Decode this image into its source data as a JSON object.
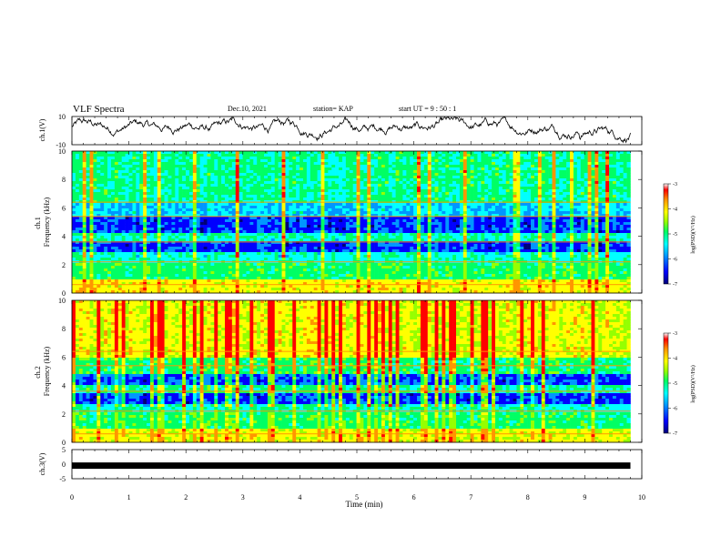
{
  "header": {
    "title": "VLF Spectra",
    "date": "Dec.10, 2021",
    "station": "station= KAP",
    "start": "start  UT =   9 : 50 : 1"
  },
  "chart_data": [
    {
      "type": "line",
      "name": "ch1-waveform",
      "ylabel": "ch.1(V)",
      "ylim": [
        -10,
        10
      ],
      "yticks": [
        "10",
        "-10"
      ],
      "xlim": [
        0,
        10
      ],
      "data_end_min": 9.8,
      "color": "#000000"
    },
    {
      "type": "heatmap",
      "name": "ch1-spectrogram",
      "ylabel": "ch.1\nFrequency (kHz)",
      "ylim": [
        0,
        10
      ],
      "yticks": [
        "0",
        "2",
        "4",
        "6",
        "8",
        "10"
      ],
      "xlim": [
        0,
        10
      ],
      "data_end_min": 9.8,
      "colorbar": {
        "label": "log(PSD)(V²/Hz)",
        "range": [
          -7,
          -3
        ],
        "ticks": [
          "-3",
          "-4",
          "-5",
          "-6",
          "-7"
        ]
      }
    },
    {
      "type": "heatmap",
      "name": "ch2-spectrogram",
      "ylabel": "ch.2\nFrequency (kHz)",
      "ylim": [
        0,
        10
      ],
      "yticks": [
        "0",
        "2",
        "4",
        "6",
        "8",
        "10"
      ],
      "xlim": [
        0,
        10
      ],
      "data_end_min": 9.8,
      "colorbar": {
        "label": "log(PSD)(V²/Hz)",
        "range": [
          -7,
          -3
        ],
        "ticks": [
          "-3",
          "-4",
          "-5",
          "-6",
          "-7"
        ]
      }
    },
    {
      "type": "line",
      "name": "ch3-waveform",
      "ylabel": "ch.3(V)",
      "ylim": [
        -5,
        5
      ],
      "yticks": [
        "5",
        "0",
        "-5"
      ],
      "xlim": [
        0,
        10
      ],
      "level": -0.5,
      "data_end_min": 9.8,
      "color": "#000000"
    }
  ],
  "xaxis": {
    "label": "Time  (min)",
    "ticks": [
      "0",
      "1",
      "2",
      "3",
      "4",
      "5",
      "6",
      "7",
      "8",
      "9",
      "10"
    ]
  },
  "colormap": [
    "#000078",
    "#0000ff",
    "#0096ff",
    "#00ffff",
    "#00ff64",
    "#96ff00",
    "#ffff00",
    "#ff9600",
    "#ff0000",
    "#ffffff"
  ]
}
